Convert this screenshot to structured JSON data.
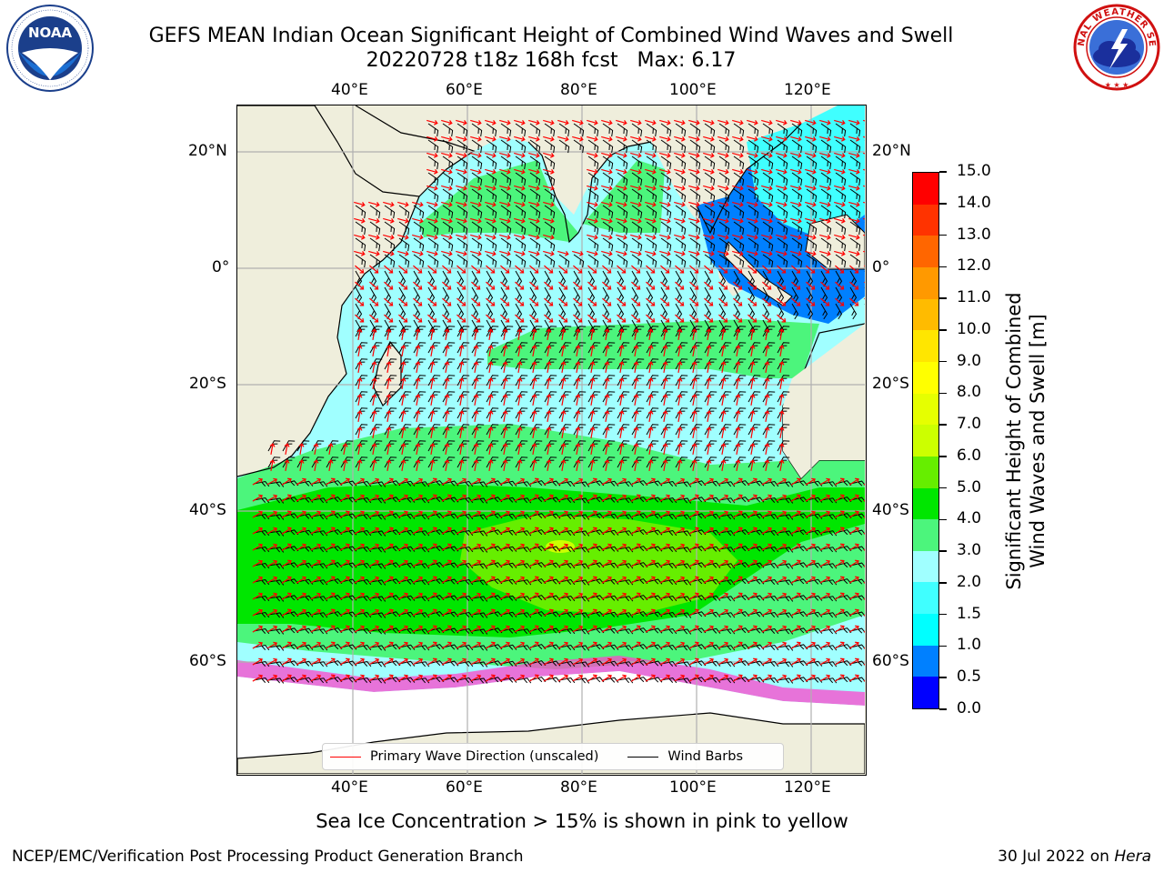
{
  "header": {
    "title_line1": "GEFS MEAN Indian Ocean Significant Height of Combined Wind Waves and Swell",
    "title_line2": "20220728 t18z 168h fcst   Max: 6.17"
  },
  "logos": {
    "noaa": {
      "text": "NOAA",
      "ring_text": "NATIONAL OCEANIC AND ATMOSPHERIC ADMINISTRATION · U.S. DEPARTMENT OF COMMERCE",
      "icon": "noaa-seagull-logo"
    },
    "nws": {
      "ring_text": "NATIONAL WEATHER SERVICE",
      "icon": "nws-lightning-cloud-logo"
    }
  },
  "map": {
    "lon_ticks": [
      "40°E",
      "60°E",
      "80°E",
      "100°E",
      "120°E"
    ],
    "lat_ticks": [
      "20°N",
      "0°",
      "20°S",
      "40°S",
      "60°S"
    ],
    "colors": {
      "land": "#efeedc",
      "ice": "#ffffff",
      "coast": "#000000",
      "grid": "#b0b0b0",
      "wave_arrow": "#ff0000",
      "wind_barb": "#000000"
    },
    "legend": {
      "wave_label": "Primary Wave Direction (unscaled)",
      "barb_label": "Wind Barbs"
    }
  },
  "colorbar": {
    "title_line1": "Significant Height of Combined",
    "title_line2": "Wind Waves and Swell [m]",
    "levels": [
      {
        "label": "0.0",
        "color": "#0000ff"
      },
      {
        "label": "0.5",
        "color": "#0080ff"
      },
      {
        "label": "1.0",
        "color": "#00ffff"
      },
      {
        "label": "1.5",
        "color": "#40ffff"
      },
      {
        "label": "2.0",
        "color": "#a0ffff"
      },
      {
        "label": "3.0",
        "color": "#4cf57c"
      },
      {
        "label": "4.0",
        "color": "#00e600"
      },
      {
        "label": "5.0",
        "color": "#66ee00"
      },
      {
        "label": "6.0",
        "color": "#ccff00"
      },
      {
        "label": "7.0",
        "color": "#e6ff00"
      },
      {
        "label": "8.0",
        "color": "#ffff00"
      },
      {
        "label": "9.0",
        "color": "#ffe600"
      },
      {
        "label": "10.0",
        "color": "#ffbb00"
      },
      {
        "label": "11.0",
        "color": "#ff9900"
      },
      {
        "label": "12.0",
        "color": "#ff6600"
      },
      {
        "label": "13.0",
        "color": "#ff3300"
      },
      {
        "label": "14.0",
        "color": "#ff0000"
      },
      {
        "label": "15.0",
        "color": null
      }
    ]
  },
  "caption": "Sea Ice Concentration > 15% is shown in pink to yellow",
  "footer": {
    "left": "NCEP/EMC/Verification Post Processing Product Generation Branch",
    "right_prefix": "30 Jul 2022 on ",
    "right_host": "Hera"
  }
}
